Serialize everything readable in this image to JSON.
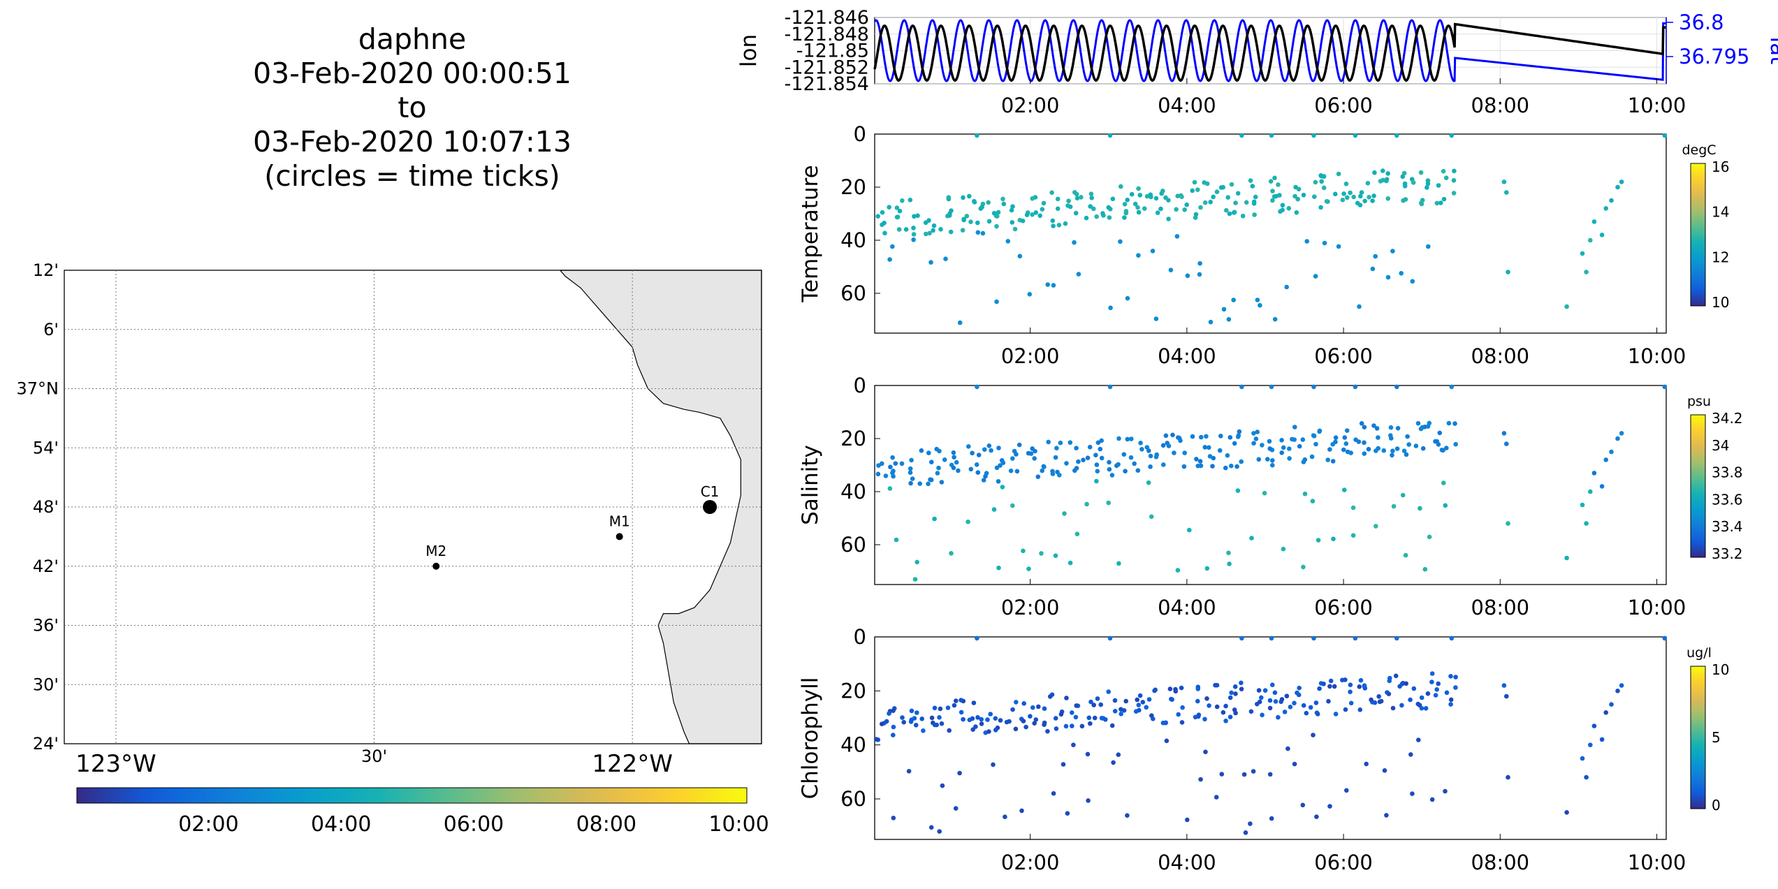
{
  "title": {
    "line1": "daphne",
    "line2": "03-Feb-2020 00:00:51",
    "line3": "to",
    "line4": "03-Feb-2020 10:07:13",
    "line5": "(circles = time ticks)"
  },
  "map": {
    "lat_ticks": [
      "12'",
      "6'",
      "37°N",
      "54'",
      "48'",
      "42'",
      "36'",
      "30'",
      "24'"
    ],
    "lon_ticks": [
      "123°W",
      "30'",
      "122°W"
    ],
    "lat_range": [
      36.4,
      37.2
    ],
    "lon_range": [
      -123.1,
      -121.75
    ],
    "stations": [
      {
        "name": "M2",
        "lon": -122.38,
        "lat": 36.7
      },
      {
        "name": "M1",
        "lon": -122.025,
        "lat": 36.75
      },
      {
        "name": "C1",
        "lon": -121.85,
        "lat": 36.8
      }
    ],
    "colorbar_ticks": [
      "02:00",
      "04:00",
      "06:00",
      "08:00",
      "10:00"
    ],
    "land_color": "#e6e6e6"
  },
  "chart_data": [
    {
      "type": "line",
      "name": "position",
      "x_range": [
        "00:00:51",
        "10:07:13"
      ],
      "x_ticks": [
        "02:00",
        "04:00",
        "06:00",
        "08:00",
        "10:00"
      ],
      "left_axis": {
        "label": "lon",
        "ticks": [
          "-121.846",
          "-121.848",
          "-121.85",
          "-121.852",
          "-121.854"
        ],
        "ylim": [
          -121.854,
          -121.846
        ]
      },
      "right_axis": {
        "label": "lat",
        "ticks": [
          "36.8",
          "36.795"
        ],
        "color": "#0000ff"
      },
      "series": [
        {
          "name": "lon",
          "color": "#000000",
          "description": "yo-yo oscillation 00:00-07:25 between -121.8535 and -121.8470 (period ~22 min), then slow drift from -121.8471 at 07:25 to -121.850 at 10:05, jump to -121.847"
        },
        {
          "name": "lat",
          "color": "#0000ff",
          "description": "yo-yo oscillation 00:00-07:25 in phase-shifted pattern, then decline from ~36.797 at 07:25 to ~36.793 at 10:05, jump back"
        }
      ]
    },
    {
      "type": "scatter",
      "name": "temperature",
      "ylabel": "Temperature",
      "ylim": [
        0,
        75
      ],
      "y_ticks": [
        "0",
        "20",
        "40",
        "60"
      ],
      "x_ticks": [
        "02:00",
        "04:00",
        "06:00",
        "08:00",
        "10:00"
      ],
      "colorbar": {
        "unit": "degC",
        "ticks": [
          "16",
          "14",
          "12",
          "10"
        ],
        "range": [
          9,
          16
        ]
      },
      "description": "upper band 20-35 m at ~12 degC (green), lower scattered points 40-75 m at ~10 degC (blue); surface points at 0 m; gap 07:30-08:00"
    },
    {
      "type": "scatter",
      "name": "salinity",
      "ylabel": "Salinity",
      "ylim": [
        0,
        75
      ],
      "y_ticks": [
        "0",
        "20",
        "40",
        "60"
      ],
      "x_ticks": [
        "02:00",
        "04:00",
        "06:00",
        "08:00",
        "10:00"
      ],
      "colorbar": {
        "unit": "psu",
        "ticks": [
          "34.2",
          "34",
          "33.8",
          "33.6",
          "33.4",
          "33.2"
        ],
        "range": [
          33.15,
          34.25
        ]
      },
      "description": "upper band 20-35 m at ~33.35 psu (blue), deeper band 35-75 m at ~33.55 psu (teal)"
    },
    {
      "type": "scatter",
      "name": "chlorophyll",
      "ylabel": "Chlorophyll",
      "ylim": [
        0,
        75
      ],
      "y_ticks": [
        "0",
        "20",
        "40",
        "60"
      ],
      "x_ticks": [
        "02:00",
        "04:00",
        "06:00",
        "08:00",
        "10:00"
      ],
      "colorbar": {
        "unit": "ug/l",
        "ticks": [
          "10",
          "5",
          "0"
        ],
        "range": [
          0,
          10
        ]
      },
      "description": "dense band 15-35 m at ~1 ug/l (dark purple), sparse deeper points; surface points ~2 ug/l"
    }
  ]
}
